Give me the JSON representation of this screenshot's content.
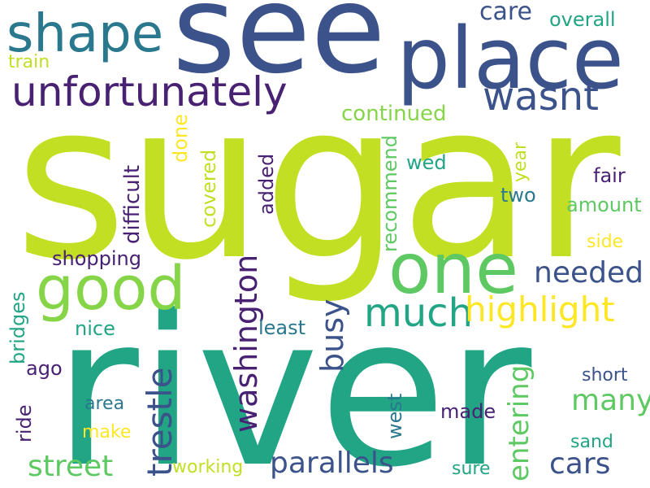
{
  "words": {
    "sugar": "sugar",
    "river": "river",
    "see": "see",
    "place": "place",
    "shape": "shape",
    "one": "one",
    "good": "good",
    "unfortunately": "unfortunately",
    "wasnt": "wasnt",
    "much": "much",
    "highlight": "highlight",
    "trestle": "trestle",
    "washington": "washington",
    "busy": "busy",
    "street": "street",
    "parallels": "parallels",
    "cars": "cars",
    "many": "many",
    "needed": "needed",
    "entering": "entering",
    "care": "care",
    "overall": "overall",
    "train": "train",
    "continued": "continued",
    "difficult": "difficult",
    "done": "done",
    "covered": "covered",
    "added": "added",
    "recommend": "recommend",
    "wed": "wed",
    "year": "year",
    "fair": "fair",
    "two": "two",
    "amount": "amount",
    "shopping": "shopping",
    "side": "side",
    "bridges": "bridges",
    "nice": "nice",
    "least": "least",
    "ago": "ago",
    "ride": "ride",
    "area": "area",
    "make": "make",
    "west": "west",
    "made": "made",
    "short": "short",
    "sand": "sand",
    "working": "working",
    "sure": "sure"
  },
  "colors": {
    "lime": "#c2df23",
    "teal": "#21a585",
    "blue": "#3b528b",
    "navy": "#482173",
    "green": "#5ec962",
    "darkteal": "#2a788e",
    "yellow": "#fde725"
  }
}
